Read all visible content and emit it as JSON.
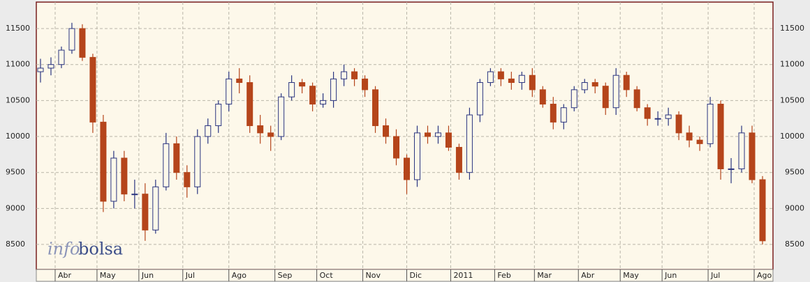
{
  "chart_data": {
    "type": "candlestick",
    "annotations": [
      "info",
      "bolsa"
    ],
    "x": [
      2,
      7,
      12,
      17,
      22,
      27,
      32,
      37,
      42,
      47,
      52,
      57,
      62,
      67,
      72,
      77,
      82,
      87,
      92,
      97,
      102,
      107,
      112,
      117,
      122,
      127,
      132,
      137,
      142,
      147,
      152,
      157,
      162,
      167,
      172,
      177,
      182,
      187,
      192,
      197,
      202,
      207,
      212,
      217,
      222,
      227,
      232,
      237,
      242,
      247,
      252,
      257,
      262,
      267,
      272,
      277,
      282,
      287,
      292,
      297,
      302,
      307,
      312,
      317,
      322,
      327,
      332,
      337,
      342,
      347
    ],
    "open": [
      10900,
      10950,
      11000,
      11200,
      11500,
      11100,
      10200,
      9100,
      9700,
      9200,
      9200,
      8700,
      9300,
      9900,
      9500,
      9300,
      10000,
      10150,
      10450,
      10800,
      10750,
      10150,
      10050,
      10000,
      10550,
      10750,
      10700,
      10450,
      10500,
      10800,
      10900,
      10800,
      10650,
      10150,
      10000,
      9700,
      9400,
      10050,
      10000,
      10050,
      9850,
      9500,
      10300,
      10750,
      10900,
      10800,
      10750,
      10850,
      10650,
      10450,
      10200,
      10400,
      10650,
      10750,
      10700,
      10400,
      10850,
      10650,
      10400,
      10250,
      10250,
      10300,
      10050,
      9950,
      9900,
      10450,
      9550,
      9550,
      10050,
      9400
    ],
    "high": [
      11080,
      11100,
      11250,
      11580,
      11560,
      11150,
      10300,
      9800,
      9800,
      9400,
      9350,
      9400,
      10050,
      10000,
      9600,
      10100,
      10250,
      10500,
      10900,
      10950,
      10850,
      10300,
      10150,
      10600,
      10850,
      10800,
      10750,
      10600,
      10900,
      11000,
      10950,
      10850,
      10700,
      10250,
      10100,
      9750,
      10150,
      10150,
      10150,
      10150,
      9900,
      10400,
      10800,
      10950,
      10950,
      10900,
      10900,
      10950,
      10700,
      10550,
      10450,
      10700,
      10800,
      10800,
      10750,
      10950,
      10900,
      10700,
      10450,
      10350,
      10400,
      10350,
      10150,
      10000,
      10550,
      10500,
      9700,
      10150,
      10150,
      9450
    ],
    "low": [
      10750,
      10850,
      10950,
      11150,
      11050,
      10050,
      8950,
      9000,
      9100,
      9000,
      8550,
      8650,
      9250,
      9400,
      9150,
      9200,
      9900,
      10050,
      10350,
      10600,
      10050,
      9900,
      9800,
      9950,
      10500,
      10600,
      10350,
      10400,
      10400,
      10700,
      10700,
      10550,
      10050,
      9900,
      9600,
      9200,
      9300,
      9900,
      9900,
      9800,
      9400,
      9400,
      10200,
      10700,
      10700,
      10650,
      10650,
      10550,
      10400,
      10100,
      10100,
      10350,
      10600,
      10600,
      10300,
      10300,
      10550,
      10350,
      10150,
      10150,
      10150,
      9950,
      9850,
      9800,
      9850,
      9400,
      9350,
      9500,
      9350,
      8500
    ],
    "close": [
      10950,
      11000,
      11200,
      11500,
      11100,
      10200,
      9100,
      9700,
      9200,
      9200,
      8700,
      9300,
      9900,
      9500,
      9300,
      10000,
      10150,
      10450,
      10800,
      10750,
      10150,
      10050,
      10000,
      10550,
      10750,
      10700,
      10450,
      10500,
      10800,
      10900,
      10800,
      10650,
      10150,
      10000,
      9700,
      9400,
      10050,
      10000,
      10050,
      9850,
      9500,
      10300,
      10750,
      10900,
      10800,
      10750,
      10850,
      10650,
      10450,
      10200,
      10400,
      10650,
      10750,
      10700,
      10400,
      10850,
      10650,
      10400,
      10250,
      10250,
      10300,
      10050,
      9950,
      9900,
      10450,
      9550,
      9550,
      10050,
      9400,
      8550
    ],
    "up_color": "#2a3580",
    "down_color": "#b5451b",
    "xlim": [
      0,
      352
    ],
    "xticks": [
      {
        "value": 9,
        "label": "Abr"
      },
      {
        "value": 29,
        "label": "May"
      },
      {
        "value": 49,
        "label": "Jun"
      },
      {
        "value": 70,
        "label": "Jul"
      },
      {
        "value": 92,
        "label": "Ago"
      },
      {
        "value": 114,
        "label": "Sep"
      },
      {
        "value": 134,
        "label": "Oct"
      },
      {
        "value": 156,
        "label": "Nov"
      },
      {
        "value": 177,
        "label": "Dic"
      },
      {
        "value": 198,
        "label": "2011"
      },
      {
        "value": 219,
        "label": "Feb"
      },
      {
        "value": 238,
        "label": "Mar"
      },
      {
        "value": 259,
        "label": "Abr"
      },
      {
        "value": 279,
        "label": "May"
      },
      {
        "value": 299,
        "label": "Jun"
      },
      {
        "value": 321,
        "label": "Jul"
      },
      {
        "value": 343,
        "label": "Ago"
      }
    ],
    "ylim": [
      8152,
      11868
    ],
    "yticks": [
      8500,
      9000,
      9500,
      10000,
      10500,
      11000,
      11500
    ],
    "grid": true
  }
}
